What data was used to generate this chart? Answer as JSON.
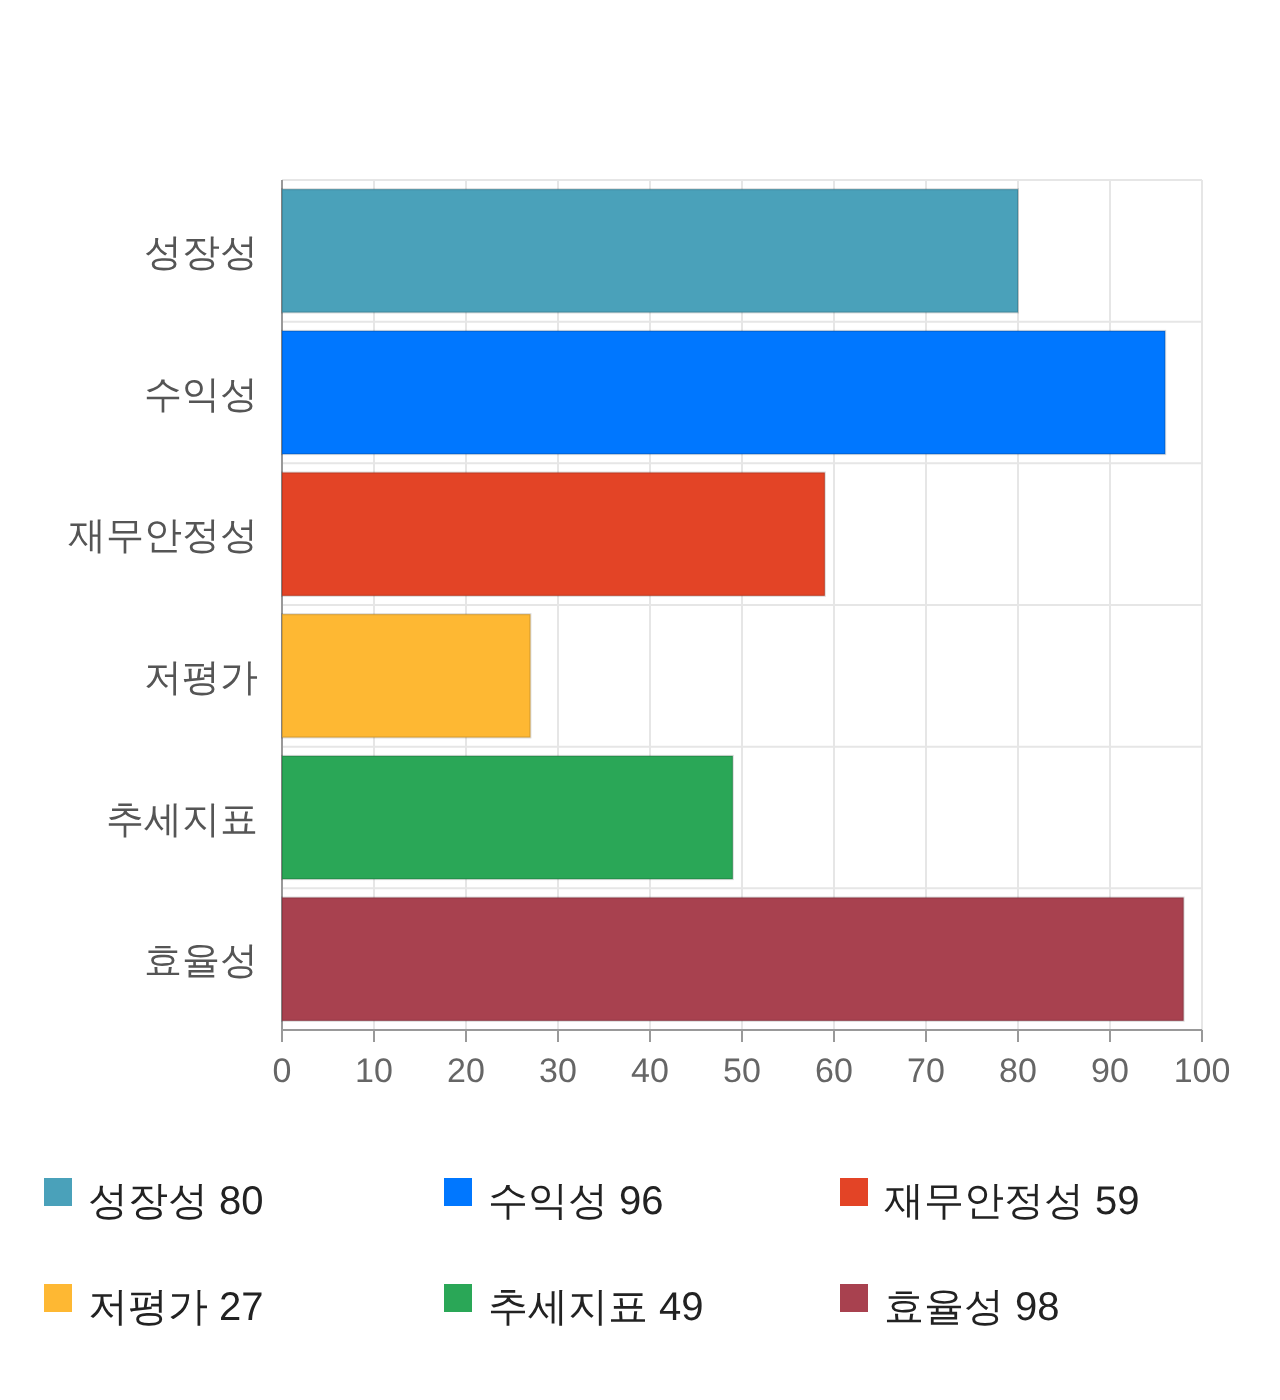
{
  "chart_data": {
    "type": "bar",
    "orientation": "horizontal",
    "stacked": true,
    "categories": [
      "성장성",
      "수익성",
      "재무안정성",
      "저평가",
      "추세지표",
      "효율성"
    ],
    "series": [
      {
        "name": "성장성 80",
        "color": "#4aa1ba",
        "values": [
          80,
          null,
          null,
          null,
          null,
          null
        ]
      },
      {
        "name": "수익성 96",
        "color": "#0077ff",
        "values": [
          null,
          96,
          null,
          null,
          null,
          null
        ]
      },
      {
        "name": "재무안정성 59",
        "color": "#e34426",
        "values": [
          null,
          null,
          59,
          null,
          null,
          null
        ]
      },
      {
        "name": "저평가 27",
        "color": "#feb833",
        "values": [
          null,
          null,
          null,
          27,
          null,
          null
        ]
      },
      {
        "name": "추세지표 49",
        "color": "#2aa757",
        "values": [
          null,
          null,
          null,
          null,
          49,
          null
        ]
      },
      {
        "name": "효율성 98",
        "color": "#a8414f",
        "values": [
          null,
          null,
          null,
          null,
          null,
          98
        ]
      }
    ],
    "xlim": [
      0,
      100
    ],
    "xticks": [
      0,
      10,
      20,
      30,
      40,
      50,
      60,
      70,
      80,
      90,
      100
    ],
    "grid": true,
    "legend": "bottom"
  }
}
